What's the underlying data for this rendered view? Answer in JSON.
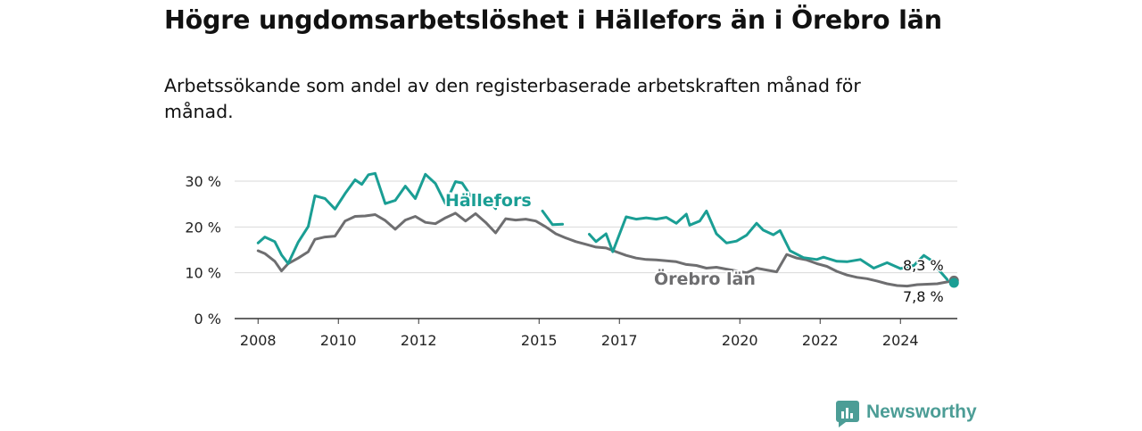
{
  "title": "Högre ungdomsarbetslöshet i Hällefors än i Örebro län",
  "subtitle": "Arbetssökande som andel av den registerbaserade arbetskraften månad för månad.",
  "brand": "Newsworthy",
  "colors": {
    "hallefors": "#1a9e94",
    "orebro": "#6e6e70",
    "grid": "#d9d9d9",
    "axis": "#333333",
    "brand": "#4c9d96"
  },
  "chart_data": {
    "type": "line",
    "x_axis_type": "date",
    "y_unit": "%",
    "ylim": [
      0,
      30
    ],
    "yticks": [
      0,
      10,
      20,
      30
    ],
    "ytick_labels": [
      "0 %",
      "10 %",
      "20 %",
      "30 %"
    ],
    "xlim": [
      "2007-06",
      "2025-06"
    ],
    "xticks": [
      "2008-01",
      "2010-01",
      "2012-01",
      "2015-01",
      "2017-01",
      "2020-01",
      "2022-01",
      "2024-01"
    ],
    "xtick_labels": [
      "2008",
      "2010",
      "2012",
      "2015",
      "2017",
      "2020",
      "2022",
      "2024"
    ],
    "grid": true,
    "legend": "inline labels",
    "series": [
      {
        "name": "Hällefors",
        "last_value_label": "7,8 %",
        "points": [
          [
            "2008-01",
            16.5
          ],
          [
            "2008-03",
            17.8
          ],
          [
            "2008-06",
            16.8
          ],
          [
            "2008-08",
            13.9
          ],
          [
            "2008-10",
            12.0
          ],
          [
            "2009-01",
            16.7
          ],
          [
            "2009-04",
            20.1
          ],
          [
            "2009-06",
            26.8
          ],
          [
            "2009-09",
            26.2
          ],
          [
            "2009-12",
            23.9
          ],
          [
            "2010-03",
            27.3
          ],
          [
            "2010-06",
            30.3
          ],
          [
            "2010-08",
            29.3
          ],
          [
            "2010-10",
            31.4
          ],
          [
            "2010-12",
            31.7
          ],
          [
            "2011-03",
            25.1
          ],
          [
            "2011-06",
            25.8
          ],
          [
            "2011-09",
            28.9
          ],
          [
            "2011-12",
            26.2
          ],
          [
            "2012-03",
            31.5
          ],
          [
            "2012-06",
            29.5
          ],
          [
            "2012-09",
            25.1
          ],
          [
            "2012-12",
            29.9
          ],
          [
            "2013-02",
            29.6
          ],
          [
            "2013-06",
            25.2
          ],
          [
            "2013-09",
            26.6
          ],
          [
            "2013-12",
            24.0
          ],
          [
            "2014-06",
            null
          ],
          [
            "2015-02",
            23.5
          ],
          [
            "2015-05",
            20.5
          ],
          [
            "2015-08",
            20.6
          ],
          [
            "2015-09",
            null
          ],
          [
            "2016-04",
            18.4
          ],
          [
            "2016-06",
            16.8
          ],
          [
            "2016-09",
            18.5
          ],
          [
            "2016-11",
            14.6
          ],
          [
            "2017-03",
            22.2
          ],
          [
            "2017-06",
            21.7
          ],
          [
            "2017-09",
            22.0
          ],
          [
            "2017-12",
            21.7
          ],
          [
            "2018-03",
            22.1
          ],
          [
            "2018-06",
            20.8
          ],
          [
            "2018-09",
            22.8
          ],
          [
            "2018-10",
            20.4
          ],
          [
            "2019-01",
            21.3
          ],
          [
            "2019-03",
            23.5
          ],
          [
            "2019-06",
            18.5
          ],
          [
            "2019-09",
            16.5
          ],
          [
            "2019-12",
            16.9
          ],
          [
            "2020-03",
            18.2
          ],
          [
            "2020-06",
            20.8
          ],
          [
            "2020-08",
            19.3
          ],
          [
            "2020-11",
            18.3
          ],
          [
            "2021-01",
            19.2
          ],
          [
            "2021-04",
            14.8
          ],
          [
            "2021-08",
            13.3
          ],
          [
            "2021-12",
            12.9
          ],
          [
            "2022-02",
            13.4
          ],
          [
            "2022-06",
            12.5
          ],
          [
            "2022-09",
            12.4
          ],
          [
            "2023-01",
            12.9
          ],
          [
            "2023-05",
            11.0
          ],
          [
            "2023-09",
            12.2
          ],
          [
            "2024-01",
            10.9
          ],
          [
            "2024-05",
            11.6
          ],
          [
            "2024-08",
            13.8
          ],
          [
            "2024-10",
            12.8
          ],
          [
            "2024-12",
            11.0
          ],
          [
            "2025-03",
            8.5
          ],
          [
            "2025-04",
            null
          ],
          [
            "2025-05",
            7.8
          ]
        ]
      },
      {
        "name": "Örebro län",
        "last_value_label": "8,3 %",
        "points": [
          [
            "2008-01",
            14.8
          ],
          [
            "2008-03",
            14.2
          ],
          [
            "2008-06",
            12.5
          ],
          [
            "2008-08",
            10.4
          ],
          [
            "2008-10",
            12.0
          ],
          [
            "2009-01",
            13.2
          ],
          [
            "2009-04",
            14.6
          ],
          [
            "2009-06",
            17.3
          ],
          [
            "2009-09",
            17.8
          ],
          [
            "2009-12",
            18.0
          ],
          [
            "2010-03",
            21.3
          ],
          [
            "2010-06",
            22.3
          ],
          [
            "2010-09",
            22.4
          ],
          [
            "2010-12",
            22.7
          ],
          [
            "2011-03",
            21.4
          ],
          [
            "2011-06",
            19.5
          ],
          [
            "2011-09",
            21.5
          ],
          [
            "2011-12",
            22.3
          ],
          [
            "2012-03",
            21.0
          ],
          [
            "2012-06",
            20.7
          ],
          [
            "2012-09",
            22.0
          ],
          [
            "2012-12",
            23.0
          ],
          [
            "2013-03",
            21.3
          ],
          [
            "2013-06",
            22.9
          ],
          [
            "2013-09",
            21.0
          ],
          [
            "2013-12",
            18.7
          ],
          [
            "2014-03",
            21.8
          ],
          [
            "2014-06",
            21.5
          ],
          [
            "2014-09",
            21.7
          ],
          [
            "2014-12",
            21.3
          ],
          [
            "2015-03",
            20.0
          ],
          [
            "2015-06",
            18.5
          ],
          [
            "2015-09",
            17.6
          ],
          [
            "2015-12",
            16.8
          ],
          [
            "2016-03",
            16.2
          ],
          [
            "2016-06",
            15.6
          ],
          [
            "2016-09",
            15.4
          ],
          [
            "2016-12",
            14.6
          ],
          [
            "2017-03",
            13.8
          ],
          [
            "2017-06",
            13.2
          ],
          [
            "2017-09",
            12.9
          ],
          [
            "2017-12",
            12.8
          ],
          [
            "2018-03",
            12.6
          ],
          [
            "2018-06",
            12.4
          ],
          [
            "2018-09",
            11.8
          ],
          [
            "2018-12",
            11.6
          ],
          [
            "2019-03",
            11.0
          ],
          [
            "2019-06",
            11.2
          ],
          [
            "2019-09",
            10.8
          ],
          [
            "2019-12",
            10.4
          ],
          [
            "2020-03",
            10.0
          ],
          [
            "2020-06",
            11.0
          ],
          [
            "2020-09",
            10.6
          ],
          [
            "2020-12",
            10.2
          ],
          [
            "2021-03",
            14.0
          ],
          [
            "2021-06",
            13.2
          ],
          [
            "2021-09",
            12.8
          ],
          [
            "2021-12",
            12.0
          ],
          [
            "2022-03",
            11.4
          ],
          [
            "2022-06",
            10.3
          ],
          [
            "2022-09",
            9.5
          ],
          [
            "2022-12",
            9.0
          ],
          [
            "2023-03",
            8.7
          ],
          [
            "2023-06",
            8.2
          ],
          [
            "2023-09",
            7.6
          ],
          [
            "2023-12",
            7.2
          ],
          [
            "2024-03",
            7.1
          ],
          [
            "2024-06",
            7.4
          ],
          [
            "2024-09",
            7.5
          ],
          [
            "2024-12",
            7.6
          ],
          [
            "2025-03",
            8.0
          ],
          [
            "2025-05",
            8.3
          ]
        ]
      }
    ]
  }
}
